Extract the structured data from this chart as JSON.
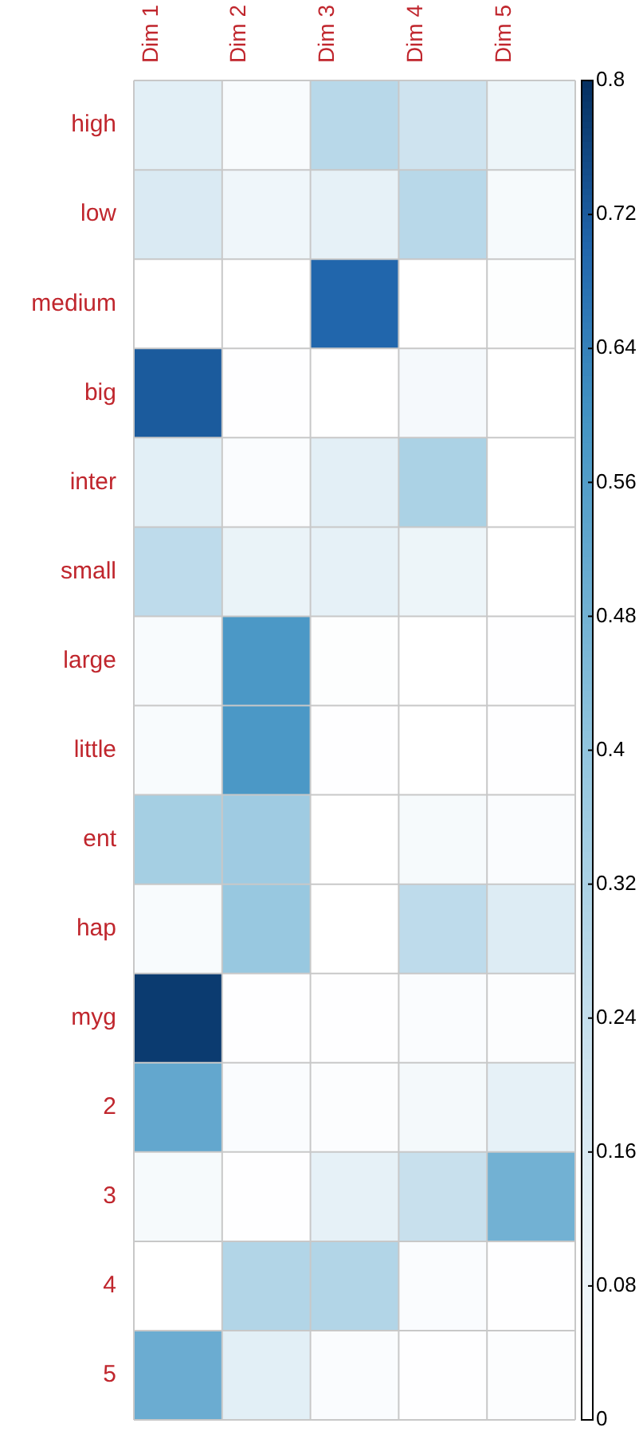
{
  "chart_data": {
    "type": "heatmap",
    "categories": [
      "Dim 1",
      "Dim 2",
      "Dim 3",
      "Dim 4",
      "Dim 5"
    ],
    "y_categories": [
      "high",
      "low",
      "medium",
      "big",
      "inter",
      "small",
      "large",
      "little",
      "ent",
      "hap",
      "myg",
      "2",
      "3",
      "4",
      "5"
    ],
    "cells": [
      [
        0.125,
        0.03,
        0.28,
        0.21,
        0.08
      ],
      [
        0.16,
        0.07,
        0.11,
        0.28,
        0.04
      ],
      [
        0,
        0,
        0.7,
        0,
        0.01
      ],
      [
        0.72,
        0.005,
        0,
        0.045,
        0
      ],
      [
        0.125,
        0.02,
        0.12,
        0.32,
        0
      ],
      [
        0.26,
        0.09,
        0.11,
        0.08,
        0
      ],
      [
        0.03,
        0.58,
        0.01,
        0,
        0.005
      ],
      [
        0.03,
        0.58,
        0.005,
        0,
        0.005
      ],
      [
        0.34,
        0.36,
        0,
        0.04,
        0.02
      ],
      [
        0.03,
        0.38,
        0,
        0.26,
        0.15
      ],
      [
        0.78,
        0.005,
        0.005,
        0.02,
        0.015
      ],
      [
        0.52,
        0.02,
        0.015,
        0.05,
        0.11
      ],
      [
        0.04,
        0.005,
        0.11,
        0.23,
        0.48
      ],
      [
        0,
        0.3,
        0.3,
        0.02,
        0.005
      ],
      [
        0.5,
        0.125,
        0.02,
        0.005,
        0.015
      ]
    ],
    "clim": [
      0,
      0.8
    ],
    "cticks": [
      0,
      0.08,
      0.16,
      0.24,
      0.32,
      0.4,
      0.48,
      0.56,
      0.64,
      0.72,
      0.8
    ],
    "grid": true,
    "legend": false
  }
}
